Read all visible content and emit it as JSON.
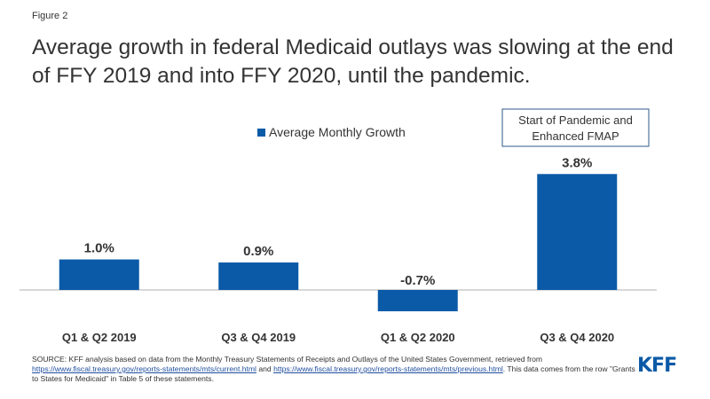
{
  "figure_label": "Figure 2",
  "title": "Average growth in federal Medicaid outlays was slowing at the end of FFY 2019 and into FFY 2020, until the pandemic.",
  "colors": {
    "bar": "#0b5aa7",
    "text": "#333333",
    "logo": "#0b5aa7"
  },
  "chart_data": {
    "type": "bar",
    "categories": [
      "Q1 & Q2 2019",
      "Q3 & Q4 2019",
      "Q1 & Q2 2020",
      "Q3 & Q4 2020"
    ],
    "series": [
      {
        "name": "Average Monthly Growth",
        "values": [
          1.0,
          0.9,
          -0.7,
          3.8
        ]
      }
    ],
    "data_labels": [
      "1.0%",
      "0.9%",
      "-0.7%",
      "3.8%"
    ],
    "legend": {
      "label": "Average Monthly Growth",
      "position": "top-center"
    },
    "annotation": {
      "line1": "Start of Pandemic and",
      "line2": "Enhanced FMAP"
    },
    "ylim": [
      -1.5,
      4.5
    ],
    "grid": false
  },
  "source": {
    "text1": "SOURCE: KFF analysis based on data from the Monthly Treasury Statements of Receipts and Outlays of the United States Government, retrieved from ",
    "link1": "https://www.fiscal.treasury.gov/reports-statements/mts/current.html",
    "and": " and ",
    "link2": "https://www.fiscal.treasury.gov/reports-statements/mts/previous.html",
    "text2": ". This data comes from the row \"Grants to States for Medicaid\" in Table 5 of these statements."
  },
  "logo": {
    "text": "KFF"
  }
}
